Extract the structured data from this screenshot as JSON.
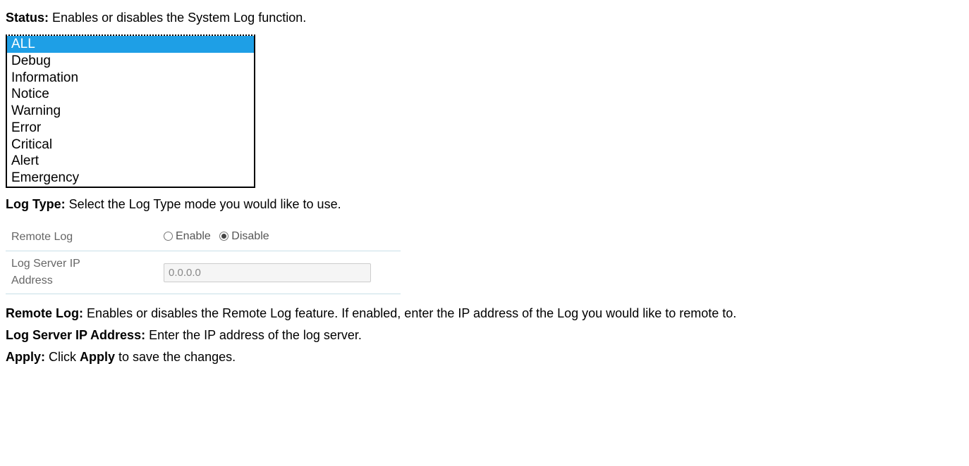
{
  "status": {
    "label": "Status:",
    "description": "Enables or disables the System Log function."
  },
  "log_type_list": {
    "items": [
      "ALL",
      "Debug",
      "Information",
      "Notice",
      "Warning",
      "Error",
      "Critical",
      "Alert",
      "Emergency"
    ],
    "selected_index": 0,
    "selected_bg": "#1e9fe6",
    "selected_fg": "#ffffff",
    "border_color": "#000000"
  },
  "log_type": {
    "label": "Log Type:",
    "description": "Select the Log Type mode you would like to use."
  },
  "settings_table": {
    "border_color": "#c8e0e8",
    "rows": {
      "remote_log": {
        "label": "Remote Log",
        "enable_label": "Enable",
        "disable_label": "Disable",
        "selected": "disable"
      },
      "log_server": {
        "label_line1": "Log Server IP",
        "label_line2": "Address",
        "value": "0.0.0.0"
      }
    }
  },
  "descriptions": {
    "remote_log": {
      "label": "Remote Log:",
      "text": "Enables or disables the Remote Log feature. If enabled, enter the IP address of the Log you would like to remote to."
    },
    "log_server": {
      "label": "Log Server IP Address:",
      "text": "Enter the IP address of the log server."
    },
    "apply": {
      "label": "Apply:",
      "text_pre": "Click ",
      "apply_word": "Apply",
      "text_post": " to save the changes."
    }
  }
}
